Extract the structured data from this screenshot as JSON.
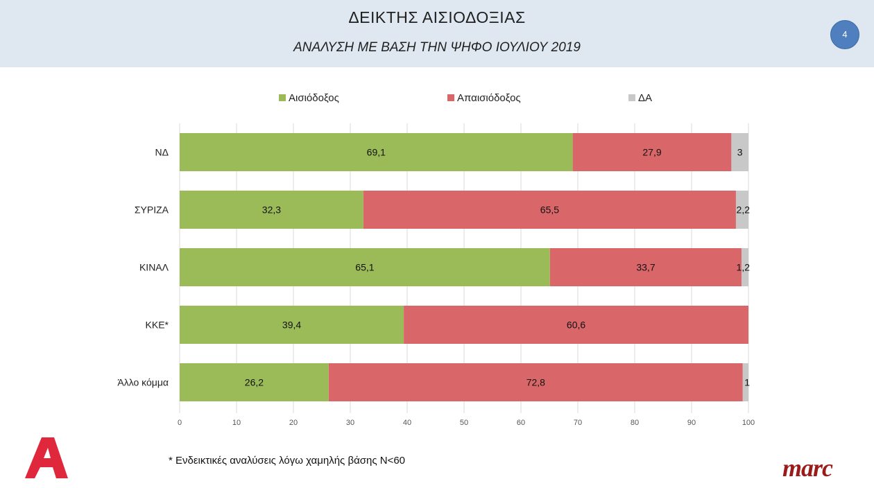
{
  "header": {
    "title": "ΔΕΙΚΤΗΣ ΑΙΣΙΟΔΟΞΙΑΣ",
    "subtitle": "ΑΝΑΛΥΣΗ ΜΕ ΒΑΣΗ ΤΗΝ ΨΗΦΟ ΙΟΥΛΙΟΥ 2019",
    "page_number": "4"
  },
  "footnote": "* Ενδεικτικές αναλύσεις λόγω χαμηλής βάσης Ν<60",
  "logos": {
    "left": "alpha-logo",
    "right": "marc"
  },
  "chart_data": {
    "type": "bar",
    "orientation": "horizontal",
    "stacked": true,
    "categories": [
      "ΝΔ",
      "ΣΥΡΙΖΑ",
      "ΚΙΝΑΛ",
      "ΚΚΕ*",
      "Άλλο κόμμα"
    ],
    "series": [
      {
        "name": "Αισιόδοξος",
        "values": [
          69.1,
          32.3,
          65.1,
          39.4,
          26.2
        ],
        "labels": [
          "69,1",
          "32,3",
          "65,1",
          "39,4",
          "26,2"
        ],
        "color": "#9bbb59"
      },
      {
        "name": "Απαισιόδοξος",
        "values": [
          27.9,
          65.5,
          33.7,
          60.6,
          72.8
        ],
        "labels": [
          "27,9",
          "65,5",
          "33,7",
          "60,6",
          "72,8"
        ],
        "color": "#d9676a"
      },
      {
        "name": "ΔΑ",
        "values": [
          3,
          2.2,
          1.2,
          0,
          1
        ],
        "labels": [
          "3",
          "2,2",
          "1,2",
          "",
          "1"
        ],
        "color": "#c8c8c8"
      }
    ],
    "xlim": [
      0,
      100
    ],
    "xticks": [
      0,
      10,
      20,
      30,
      40,
      50,
      60,
      70,
      80,
      90,
      100
    ],
    "grid": true,
    "legend": "top"
  }
}
